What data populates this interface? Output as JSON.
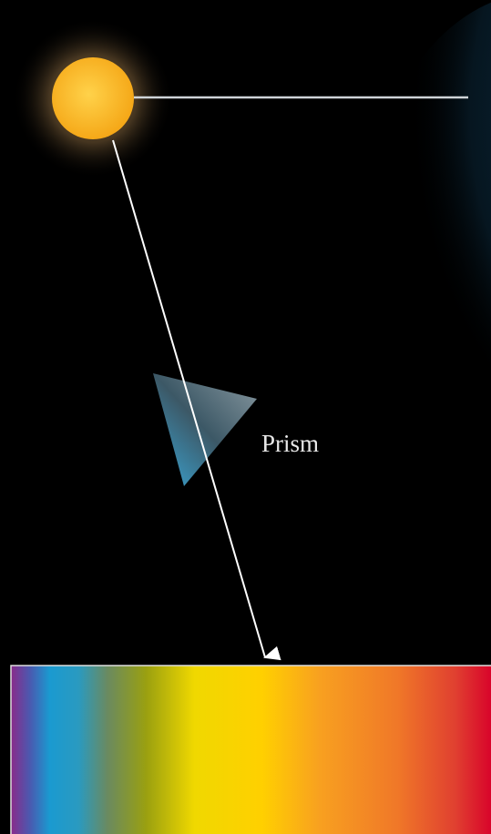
{
  "labels": {
    "prism": "Prism"
  }
}
